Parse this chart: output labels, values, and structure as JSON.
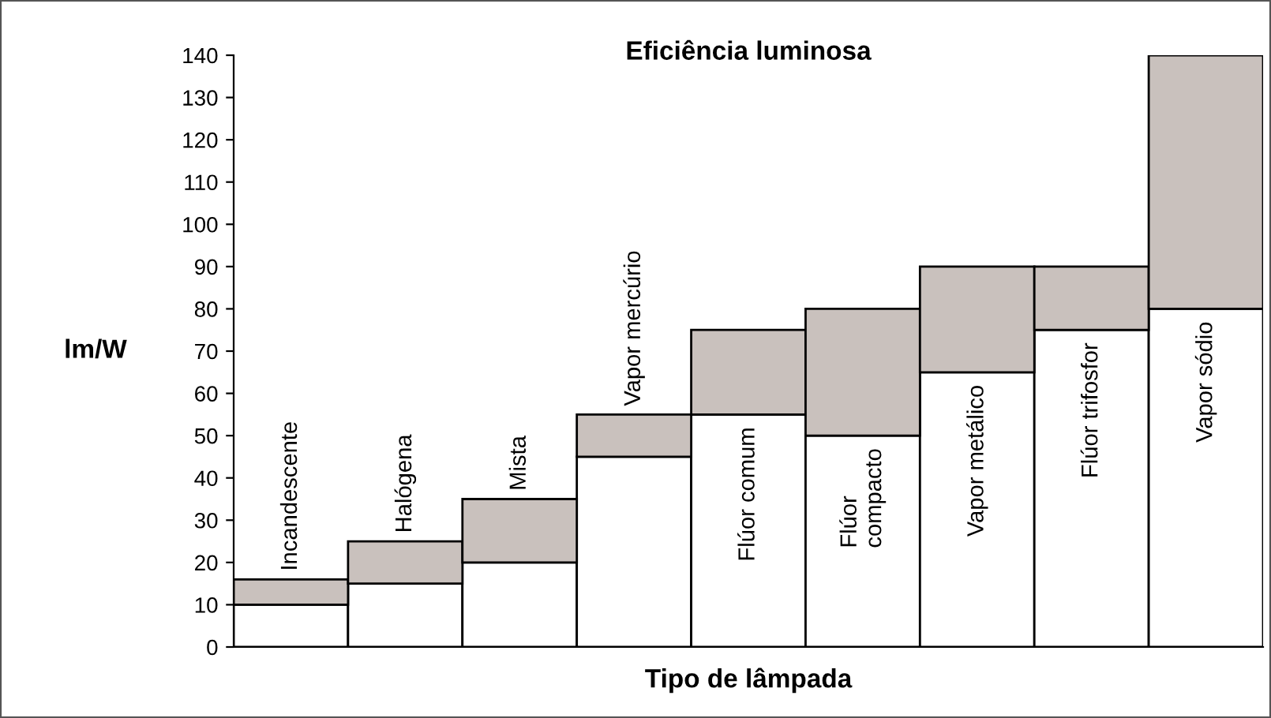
{
  "chart_data": {
    "type": "bar",
    "title": "Eficiência luminosa",
    "xlabel": "Tipo de lâmpada",
    "ylabel": "lm/W",
    "categories": [
      "Incandescente",
      "Halógena",
      "Mista",
      "Vapor mercúrio",
      "Flúor comum",
      "Flúor compacto",
      "Vapor metálico",
      "Flúor trifosfor",
      "Vapor sódio"
    ],
    "stacked": true,
    "series": [
      {
        "color": "#ffffff",
        "values": [
          10,
          15,
          20,
          45,
          55,
          50,
          65,
          75,
          80
        ]
      },
      {
        "color": "#c9c1bd",
        "values": [
          6,
          10,
          15,
          10,
          20,
          30,
          25,
          15,
          60
        ]
      }
    ],
    "ylim": [
      0,
      140
    ],
    "yticks": [
      0,
      10,
      20,
      30,
      40,
      50,
      60,
      70,
      80,
      90,
      100,
      110,
      120,
      130,
      140
    ],
    "grid": false,
    "legend": false
  }
}
